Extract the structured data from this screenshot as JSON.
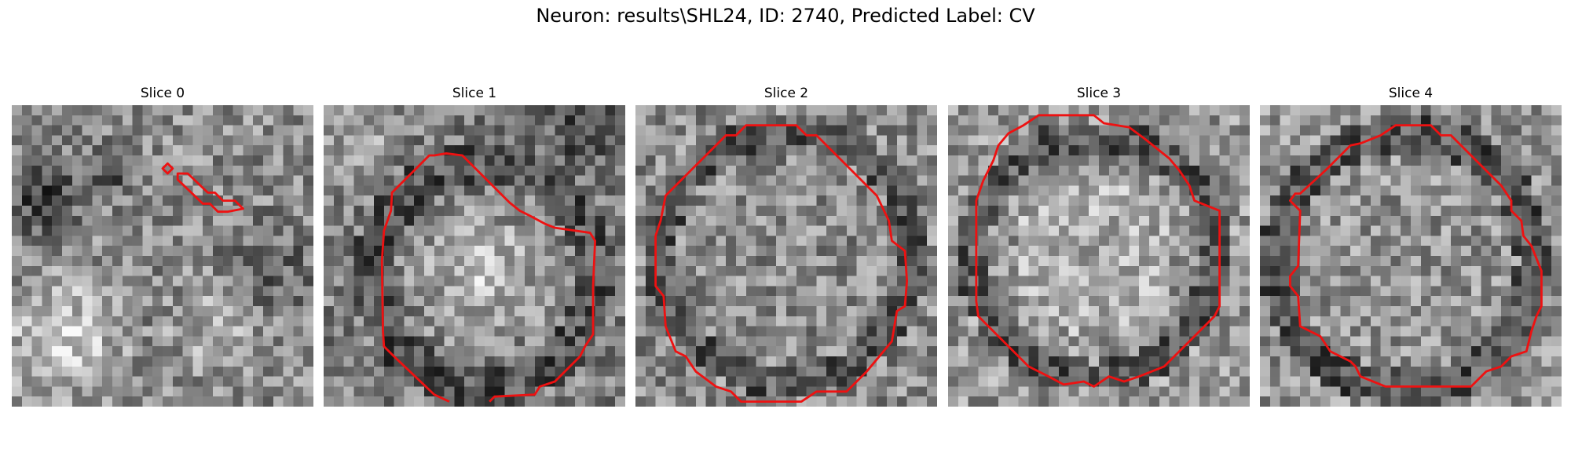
{
  "figure": {
    "title": "Neuron: results\\SHL24, ID: 2740, Predicted Label: CV"
  },
  "colors": {
    "contour": "#ee1111",
    "background": "#ffffff"
  },
  "panels": [
    {
      "id": "slice-0",
      "title": "Slice 0",
      "image": "grayscale-em-patch",
      "contour_present": true,
      "contour_extent": "small"
    },
    {
      "id": "slice-1",
      "title": "Slice 1",
      "image": "grayscale-em-patch",
      "contour_present": true,
      "contour_extent": "large-open"
    },
    {
      "id": "slice-2",
      "title": "Slice 2",
      "image": "grayscale-em-patch",
      "contour_present": true,
      "contour_extent": "large"
    },
    {
      "id": "slice-3",
      "title": "Slice 3",
      "image": "grayscale-em-patch",
      "contour_present": true,
      "contour_extent": "large"
    },
    {
      "id": "slice-4",
      "title": "Slice 4",
      "image": "grayscale-em-patch",
      "contour_present": true,
      "contour_extent": "large"
    }
  ]
}
